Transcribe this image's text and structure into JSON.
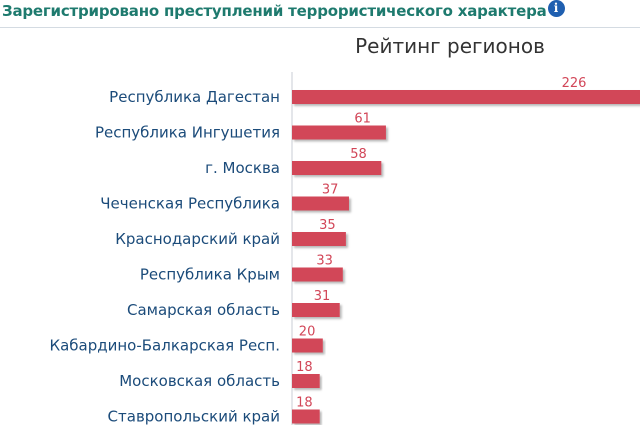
{
  "header": {
    "title": "Зарегистрировано преступлений террористического характера",
    "info_icon": "info-icon",
    "info_glyph": "i"
  },
  "colors": {
    "header_text": "#1e7a6e",
    "bar": "#d24658",
    "category_text": "#1b4b7a",
    "value_text": "#d24658"
  },
  "chart_data": {
    "type": "bar",
    "orientation": "horizontal",
    "title": "Рейтинг регионов",
    "categories": [
      "Республика Дагестан",
      "Республика Ингушетия",
      "г. Москва",
      "Чеченская Республика",
      "Краснодарский край",
      "Республика Крым",
      "Самарская область",
      "Кабардино-Балкарская Респ.",
      "Московская область",
      "Ставропольский край"
    ],
    "values": [
      226,
      61,
      58,
      37,
      35,
      33,
      31,
      20,
      18,
      18
    ],
    "xlim": [
      0,
      226
    ],
    "grid": false,
    "legend": "none"
  }
}
